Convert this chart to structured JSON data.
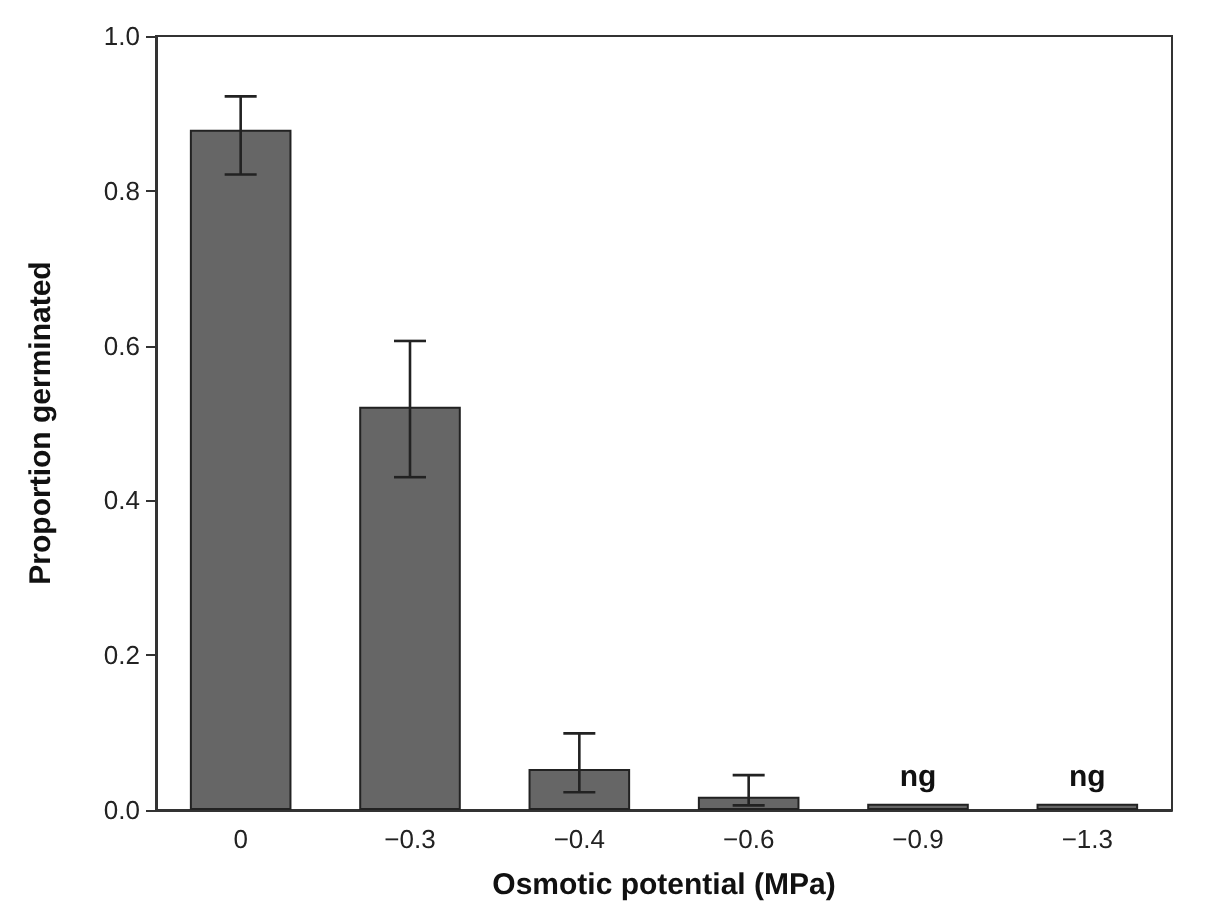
{
  "chart_data": {
    "type": "bar",
    "xlabel": "Osmotic potential (MPa)",
    "ylabel": "Proportion germinated",
    "categories": [
      "0",
      "−0.3",
      "−0.4",
      "−0.6",
      "−0.9",
      "−1.3"
    ],
    "values": [
      0.879,
      0.521,
      0.053,
      0.017,
      0.008,
      0.008
    ],
    "errors": [
      [
        0.821,
        0.922
      ],
      [
        0.43,
        0.606
      ],
      [
        0.023,
        0.099
      ],
      [
        0.006,
        0.045
      ],
      null,
      null
    ],
    "color": "#666666",
    "ylim": [
      0,
      1
    ],
    "yticks": [
      {
        "value": 0,
        "label": "0.0"
      },
      {
        "value": 0.2,
        "label": "0.2"
      },
      {
        "value": 0.4,
        "label": "0.4"
      },
      {
        "value": 0.6,
        "label": "0.6"
      },
      {
        "value": 0.8,
        "label": "0.8"
      },
      {
        "value": 1,
        "label": "1.0"
      }
    ],
    "grid": false,
    "annotations": [
      {
        "text": "ng",
        "x": "−0.9",
        "y": 0.008
      },
      {
        "text": "ng",
        "x": "−1.3",
        "y": 0.008
      }
    ]
  }
}
